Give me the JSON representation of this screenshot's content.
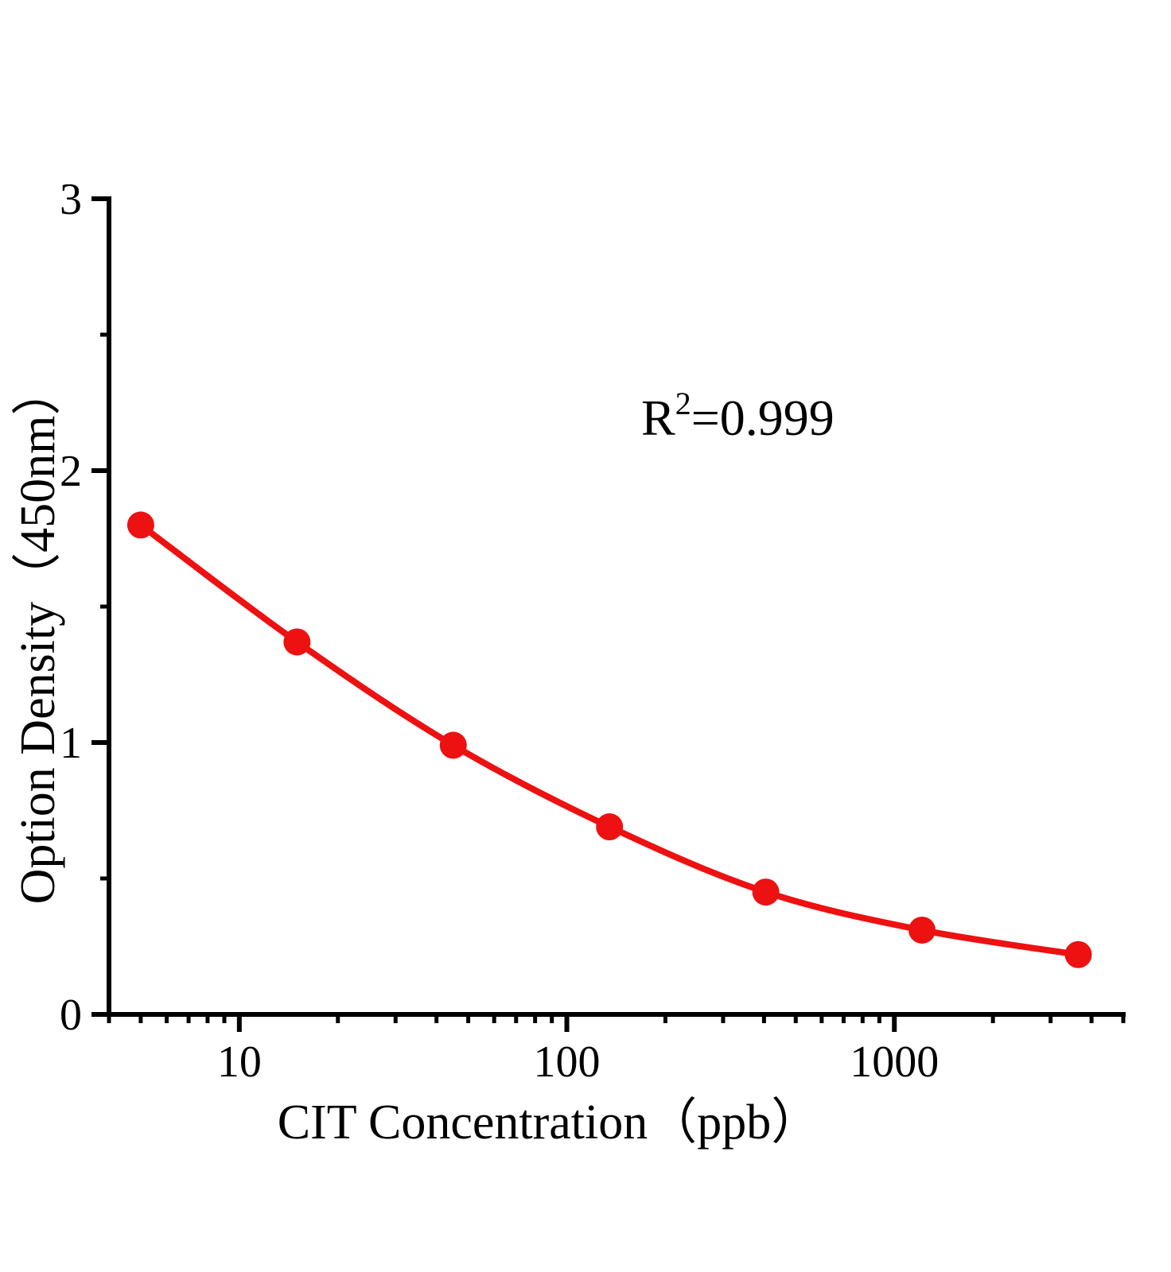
{
  "chart_data": {
    "type": "scatter",
    "title": "",
    "xlabel": "CIT Concentration（ppb）",
    "ylabel": "Option Density（450nm）",
    "x_scale": "log",
    "y_scale": "linear",
    "x_range": [
      4,
      5000
    ],
    "y_range": [
      0,
      3
    ],
    "x": [
      5,
      15,
      45,
      135,
      405,
      1215,
      3645
    ],
    "y": [
      1.8,
      1.37,
      0.99,
      0.69,
      0.45,
      0.31,
      0.22
    ],
    "x_major_ticks": [
      10,
      100,
      1000
    ],
    "x_tick_labels": [
      "10",
      "100",
      "1000"
    ],
    "x_minor_ticks": [
      4,
      5,
      6,
      7,
      8,
      9,
      20,
      30,
      40,
      50,
      60,
      70,
      80,
      90,
      200,
      300,
      400,
      500,
      600,
      700,
      800,
      900,
      2000,
      3000,
      4000,
      5000
    ],
    "y_major_ticks": [
      0,
      1,
      2,
      3
    ],
    "y_tick_labels": [
      "0",
      "1",
      "2",
      "3"
    ],
    "y_minor_ticks": [
      0.5,
      1.5,
      2.5
    ],
    "grid": false,
    "legend": "none",
    "annotation": {
      "text": "R²=0.999",
      "base": "R",
      "sup": "2",
      "rest": "=0.999"
    },
    "line_color": "#ed1111",
    "marker_color": "#ed1111",
    "axis_color": "#000000",
    "text_color": "#000000"
  }
}
